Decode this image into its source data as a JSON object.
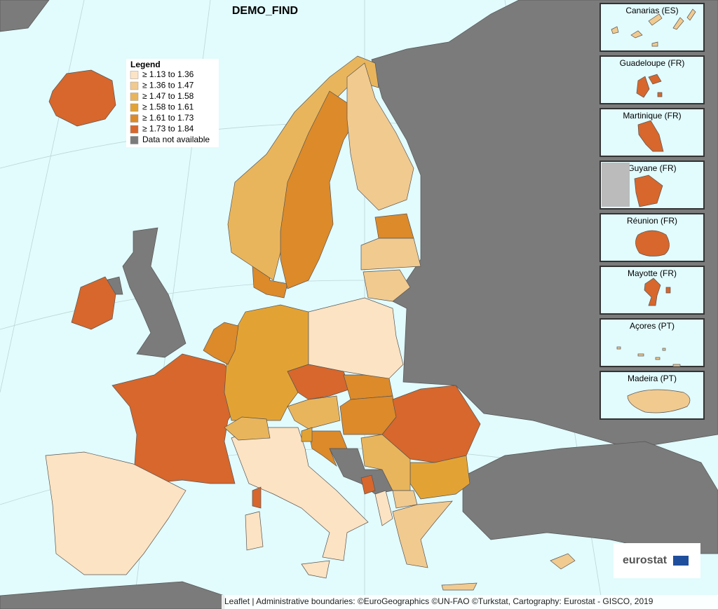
{
  "title": "DEMO_FIND",
  "legend": {
    "title": "Legend",
    "items": [
      {
        "label": "≥ 1.13 to 1.36",
        "color": "#fce3c3"
      },
      {
        "label": "≥ 1.36 to 1.47",
        "color": "#f1ca90"
      },
      {
        "label": "≥ 1.47 to 1.58",
        "color": "#e9b55c"
      },
      {
        "label": "≥ 1.58 to 1.61",
        "color": "#e3a334"
      },
      {
        "label": "≥ 1.61 to 1.73",
        "color": "#dc8a2a"
      },
      {
        "label": "≥ 1.73 to 1.84",
        "color": "#d7672c"
      },
      {
        "label": "Data not available",
        "color": "#7b7b7b"
      }
    ]
  },
  "insets": [
    "Canarias (ES)",
    "Guadeloupe (FR)",
    "Martinique (FR)",
    "Guyane (FR)",
    "Réunion (FR)",
    "Mayotte (FR)",
    "Açores (PT)",
    "Madeira (PT)"
  ],
  "logo": "eurostat",
  "attribution": "Leaflet | Administrative boundaries: ©EuroGeographics ©UN-FAO ©Turkstat, Cartography: Eurostat - GISCO, 2019"
}
